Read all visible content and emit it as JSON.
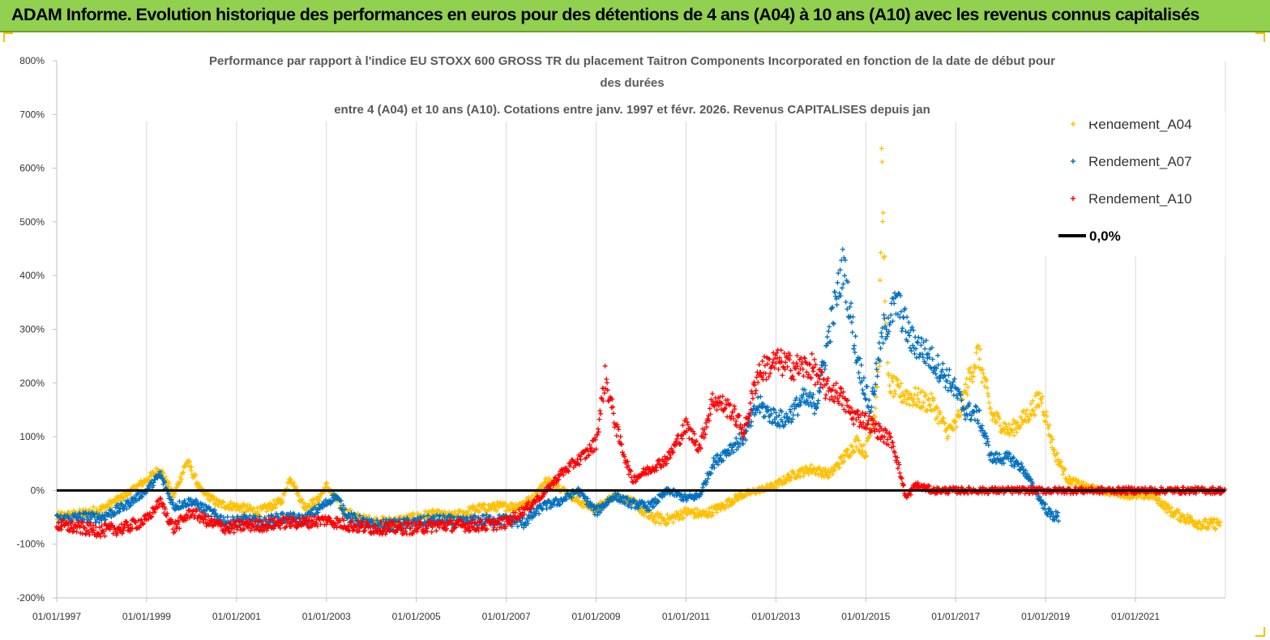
{
  "banner": {
    "title": "ADAM Informe. Evolution historique des performances en euros pour des détentions de 4 ans (A04) à 10 ans (A10) avec les revenus connus capitalisés",
    "background_color": "#92d050"
  },
  "chart_data": {
    "type": "scatter",
    "title_lines": [
      "Performance par rapport à l'indice EU STOXX 600 GROSS TR  du placement Taitron Components Incorporated en fonction de la date de début pour",
      "des durées",
      "entre 4 (A04) et 10 ans (A10). Cotations entre janv. 1997 et févr. 2026. Revenus CAPITALISES depuis jan"
    ],
    "y_axis": {
      "min": -200,
      "max": 800,
      "step": 100,
      "unit": "%",
      "tick_labels": [
        "-200%",
        "-100%",
        "0%",
        "100%",
        "200%",
        "300%",
        "400%",
        "500%",
        "600%",
        "700%",
        "800%"
      ]
    },
    "x_axis": {
      "min_year": 1997.0,
      "max_year": 2023.0,
      "tick_labels": [
        "01/01/1997",
        "01/01/1999",
        "01/01/2001",
        "01/01/2003",
        "01/01/2005",
        "01/01/2007",
        "01/01/2009",
        "01/01/2011",
        "01/01/2013",
        "01/01/2015",
        "01/01/2017",
        "01/01/2019",
        "01/01/2021"
      ]
    },
    "grid": {
      "vertical": true,
      "horizontal": false
    },
    "legend_position": "top-right",
    "series": [
      {
        "name": "Rendement_A04",
        "color": "#ffc000",
        "marker": "plus",
        "points": [
          [
            1997.0,
            -50
          ],
          [
            1997.5,
            -45
          ],
          [
            1998.0,
            -35
          ],
          [
            1998.5,
            -10
          ],
          [
            1999.0,
            20
          ],
          [
            1999.3,
            40
          ],
          [
            1999.6,
            -10
          ],
          [
            1999.9,
            55
          ],
          [
            2000.2,
            0
          ],
          [
            2000.6,
            -25
          ],
          [
            2001.0,
            -30
          ],
          [
            2001.5,
            -40
          ],
          [
            2002.0,
            -20
          ],
          [
            2002.2,
            25
          ],
          [
            2002.5,
            -30
          ],
          [
            2002.8,
            -20
          ],
          [
            2003.0,
            10
          ],
          [
            2003.4,
            -40
          ],
          [
            2003.8,
            -55
          ],
          [
            2004.3,
            -60
          ],
          [
            2004.8,
            -55
          ],
          [
            2005.3,
            -45
          ],
          [
            2005.8,
            -50
          ],
          [
            2006.3,
            -35
          ],
          [
            2006.8,
            -30
          ],
          [
            2007.2,
            -30
          ],
          [
            2007.6,
            -15
          ],
          [
            2007.9,
            20
          ],
          [
            2008.3,
            0
          ],
          [
            2008.6,
            -20
          ],
          [
            2009.0,
            -35
          ],
          [
            2009.4,
            -10
          ],
          [
            2009.8,
            -20
          ],
          [
            2010.2,
            -50
          ],
          [
            2010.6,
            -55
          ],
          [
            2011.0,
            -40
          ],
          [
            2011.4,
            -45
          ],
          [
            2011.8,
            -30
          ],
          [
            2012.2,
            -10
          ],
          [
            2012.6,
            0
          ],
          [
            2013.0,
            10
          ],
          [
            2013.4,
            30
          ],
          [
            2013.8,
            40
          ],
          [
            2014.2,
            30
          ],
          [
            2014.5,
            60
          ],
          [
            2014.8,
            90
          ],
          [
            2015.0,
            70
          ],
          [
            2015.2,
            150
          ],
          [
            2015.3,
            250
          ],
          [
            2015.35,
            600
          ],
          [
            2015.4,
            450
          ],
          [
            2015.5,
            200
          ],
          [
            2015.8,
            180
          ],
          [
            2016.2,
            170
          ],
          [
            2016.5,
            160
          ],
          [
            2016.8,
            110
          ],
          [
            2017.0,
            120
          ],
          [
            2017.3,
            210
          ],
          [
            2017.5,
            255
          ],
          [
            2017.8,
            140
          ],
          [
            2018.2,
            110
          ],
          [
            2018.6,
            140
          ],
          [
            2018.9,
            175
          ],
          [
            2019.2,
            70
          ],
          [
            2019.5,
            20
          ],
          [
            2019.8,
            10
          ],
          [
            2020.2,
            0
          ],
          [
            2020.6,
            -5
          ],
          [
            2021.0,
            -10
          ],
          [
            2021.4,
            -10
          ],
          [
            2021.8,
            -40
          ],
          [
            2022.2,
            -55
          ],
          [
            2022.6,
            -65
          ],
          [
            2022.9,
            -60
          ]
        ]
      },
      {
        "name": "Rendement_A07",
        "color": "#0070c0",
        "marker": "plus",
        "points": [
          [
            1997.0,
            -55
          ],
          [
            1997.5,
            -50
          ],
          [
            1998.0,
            -50
          ],
          [
            1998.5,
            -30
          ],
          [
            1999.0,
            0
          ],
          [
            1999.3,
            30
          ],
          [
            1999.6,
            -30
          ],
          [
            2000.0,
            -20
          ],
          [
            2000.4,
            -40
          ],
          [
            2000.8,
            -60
          ],
          [
            2001.2,
            -55
          ],
          [
            2001.6,
            -60
          ],
          [
            2002.0,
            -50
          ],
          [
            2002.5,
            -55
          ],
          [
            2002.9,
            -30
          ],
          [
            2003.2,
            -10
          ],
          [
            2003.5,
            -50
          ],
          [
            2004.0,
            -65
          ],
          [
            2004.5,
            -65
          ],
          [
            2005.0,
            -60
          ],
          [
            2005.5,
            -55
          ],
          [
            2006.0,
            -60
          ],
          [
            2006.5,
            -55
          ],
          [
            2007.0,
            -55
          ],
          [
            2007.4,
            -60
          ],
          [
            2007.8,
            -30
          ],
          [
            2008.2,
            -20
          ],
          [
            2008.6,
            0
          ],
          [
            2009.0,
            -40
          ],
          [
            2009.4,
            -10
          ],
          [
            2009.8,
            -25
          ],
          [
            2010.2,
            -30
          ],
          [
            2010.6,
            0
          ],
          [
            2011.0,
            -15
          ],
          [
            2011.3,
            -10
          ],
          [
            2011.6,
            50
          ],
          [
            2012.0,
            80
          ],
          [
            2012.3,
            100
          ],
          [
            2012.6,
            160
          ],
          [
            2012.9,
            140
          ],
          [
            2013.2,
            130
          ],
          [
            2013.6,
            170
          ],
          [
            2013.9,
            160
          ],
          [
            2014.2,
            300
          ],
          [
            2014.5,
            420
          ],
          [
            2014.8,
            250
          ],
          [
            2015.1,
            150
          ],
          [
            2015.4,
            300
          ],
          [
            2015.7,
            350
          ],
          [
            2016.0,
            280
          ],
          [
            2016.3,
            260
          ],
          [
            2016.6,
            230
          ],
          [
            2016.9,
            200
          ],
          [
            2017.2,
            150
          ],
          [
            2017.5,
            140
          ],
          [
            2017.8,
            60
          ],
          [
            2018.2,
            60
          ],
          [
            2018.5,
            40
          ],
          [
            2018.9,
            -20
          ],
          [
            2019.1,
            -45
          ],
          [
            2019.3,
            -50
          ]
        ]
      },
      {
        "name": "Rendement_A10",
        "color": "#ff0000",
        "marker": "plus",
        "points": [
          [
            1997.0,
            -65
          ],
          [
            1997.5,
            -70
          ],
          [
            1998.0,
            -75
          ],
          [
            1998.5,
            -70
          ],
          [
            1999.0,
            -55
          ],
          [
            1999.3,
            -20
          ],
          [
            1999.6,
            -70
          ],
          [
            2000.0,
            -40
          ],
          [
            2000.4,
            -60
          ],
          [
            2000.8,
            -70
          ],
          [
            2001.2,
            -65
          ],
          [
            2001.6,
            -65
          ],
          [
            2002.0,
            -60
          ],
          [
            2002.5,
            -60
          ],
          [
            2003.0,
            -55
          ],
          [
            2003.5,
            -65
          ],
          [
            2004.0,
            -70
          ],
          [
            2004.5,
            -70
          ],
          [
            2005.0,
            -70
          ],
          [
            2005.5,
            -65
          ],
          [
            2006.0,
            -65
          ],
          [
            2006.5,
            -65
          ],
          [
            2007.0,
            -60
          ],
          [
            2007.5,
            -30
          ],
          [
            2007.9,
            0
          ],
          [
            2008.2,
            30
          ],
          [
            2008.5,
            50
          ],
          [
            2008.8,
            70
          ],
          [
            2009.0,
            90
          ],
          [
            2009.2,
            210
          ],
          [
            2009.5,
            100
          ],
          [
            2009.8,
            20
          ],
          [
            2010.2,
            40
          ],
          [
            2010.6,
            60
          ],
          [
            2011.0,
            120
          ],
          [
            2011.3,
            80
          ],
          [
            2011.6,
            170
          ],
          [
            2012.0,
            150
          ],
          [
            2012.3,
            110
          ],
          [
            2012.6,
            220
          ],
          [
            2013.0,
            240
          ],
          [
            2013.4,
            230
          ],
          [
            2013.8,
            230
          ],
          [
            2014.1,
            190
          ],
          [
            2014.4,
            180
          ],
          [
            2014.7,
            140
          ],
          [
            2015.0,
            130
          ],
          [
            2015.3,
            110
          ],
          [
            2015.6,
            90
          ],
          [
            2015.9,
            -15
          ],
          [
            2016.1,
            10
          ],
          [
            2016.5,
            0
          ],
          [
            2017.0,
            0
          ],
          [
            2018.0,
            0
          ],
          [
            2019.0,
            0
          ],
          [
            2020.0,
            0
          ],
          [
            2021.0,
            0
          ],
          [
            2022.0,
            0
          ],
          [
            2023.0,
            0
          ]
        ]
      },
      {
        "name": "0,0%",
        "color": "#000000",
        "type": "line",
        "value": 0
      }
    ]
  }
}
